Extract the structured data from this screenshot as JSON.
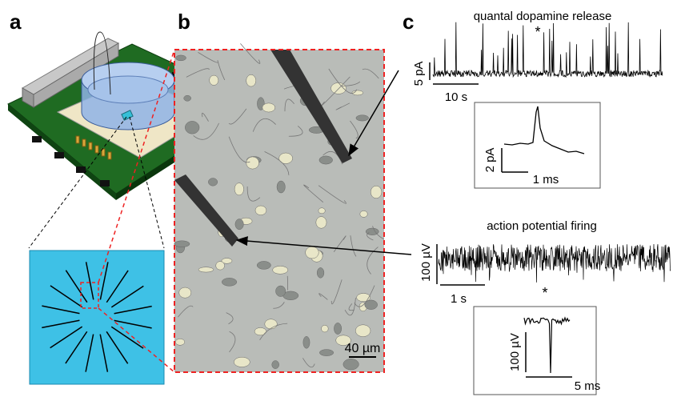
{
  "panels": {
    "a": {
      "label": "a"
    },
    "b": {
      "label": "b",
      "scale_bar": "40 µm"
    },
    "c": {
      "label": "c",
      "traces": [
        {
          "title": "quantal dopamine release",
          "y_scale": "5 pA",
          "x_scale": "10 s",
          "marker": "*",
          "inset": {
            "y_scale": "2 pA",
            "x_scale": "1 ms"
          }
        },
        {
          "title": "action potential firing",
          "y_scale": "100 µV",
          "x_scale": "1 s",
          "marker": "*",
          "inset": {
            "y_scale": "100 µV",
            "x_scale": "5 ms"
          }
        }
      ]
    }
  }
}
